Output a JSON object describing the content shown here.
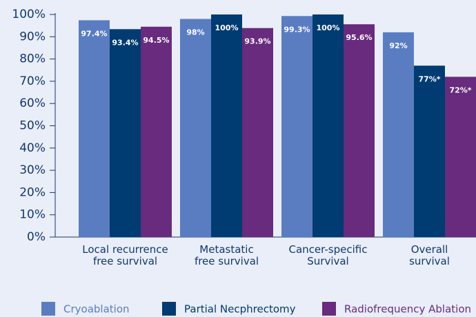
{
  "chart_data": {
    "type": "bar",
    "categories": [
      "Local recurrence\nfree survival",
      "Metastatic\nfree survival",
      "Cancer-specific\nSurvival",
      "Overall\nsurvival"
    ],
    "series": [
      {
        "name": "Cryoablation",
        "color": "#5a7dc2",
        "values": [
          97.4,
          98,
          99.3,
          92
        ],
        "value_labels": [
          "97.4%",
          "98%",
          "99.3%",
          "92%"
        ]
      },
      {
        "name": "Partial Necphrectomy",
        "color": "#003b71",
        "values": [
          93.4,
          100,
          100,
          77
        ],
        "value_labels": [
          "93.4%",
          "100%",
          "100%",
          "77%*"
        ]
      },
      {
        "name": "Radiofrequency Ablation",
        "color": "#682b7d",
        "values": [
          94.5,
          93.9,
          95.6,
          72
        ],
        "value_labels": [
          "94.5%",
          "93.9%",
          "95.6%",
          "72%*"
        ]
      }
    ],
    "ylim": [
      0,
      100
    ],
    "yticks": [
      {
        "value": 0,
        "label": "0%"
      },
      {
        "value": 10,
        "label": "10%"
      },
      {
        "value": 20,
        "label": "20%"
      },
      {
        "value": 30,
        "label": "30%"
      },
      {
        "value": 40,
        "label": "40%"
      },
      {
        "value": 50,
        "label": "50%"
      },
      {
        "value": 60,
        "label": "60%"
      },
      {
        "value": 70,
        "label": "70%"
      },
      {
        "value": 80,
        "label": "80%"
      },
      {
        "value": 90,
        "label": "90%"
      },
      {
        "value": 100,
        "label": "100%"
      }
    ],
    "legend": "bottom"
  }
}
